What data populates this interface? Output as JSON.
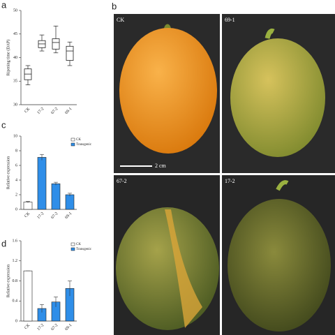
{
  "chart_data": [
    {
      "type": "box",
      "panel_label": "a",
      "y_label": "Ripening time (DAP)",
      "categories": [
        "CK",
        "17-2",
        "67-2",
        "69-1"
      ],
      "min": [
        34.2,
        41.4,
        41.0,
        38.3
      ],
      "q1": [
        35.3,
        42.1,
        41.8,
        39.4
      ],
      "median": [
        36.5,
        42.9,
        43.2,
        41.4
      ],
      "q3": [
        37.6,
        43.6,
        44.0,
        42.4
      ],
      "max": [
        38.3,
        44.8,
        46.7,
        43.3
      ],
      "color": "#ffffff",
      "ylim": [
        30,
        50
      ],
      "yticks": [
        30,
        35,
        40,
        45,
        50
      ]
    },
    {
      "type": "bar",
      "panel_label": "c",
      "y_label": "Relative expression",
      "categories": [
        "CK",
        "17-2",
        "67-2",
        "69-1"
      ],
      "series": [
        {
          "name": "CK",
          "color": "#ffffff",
          "values": [
            1.0,
            null,
            null,
            null
          ],
          "errors": [
            0.1,
            null,
            null,
            null
          ]
        },
        {
          "name": "Transgenic",
          "color": "#2f8ee8",
          "values": [
            null,
            7.1,
            3.5,
            2.0
          ],
          "errors": [
            null,
            0.4,
            0.2,
            0.2
          ]
        }
      ],
      "ylim": [
        0,
        10
      ],
      "yticks": [
        0,
        2,
        4,
        6,
        8,
        10
      ],
      "legend": "top-right"
    },
    {
      "type": "bar",
      "panel_label": "d",
      "y_label": "Relative expression",
      "categories": [
        "CK",
        "17-2",
        "67-2",
        "69-1"
      ],
      "series": [
        {
          "name": "CK",
          "color": "#ffffff",
          "values": [
            1.0,
            null,
            null,
            null
          ],
          "errors": [
            0.0,
            null,
            null,
            null
          ]
        },
        {
          "name": "Transgenic",
          "color": "#2f8ee8",
          "values": [
            null,
            0.25,
            0.38,
            0.65
          ],
          "errors": [
            null,
            0.08,
            0.1,
            0.15
          ]
        }
      ],
      "ylim": [
        0,
        1.6
      ],
      "yticks": [
        0,
        0.4,
        0.8,
        1.2,
        1.6
      ],
      "legend": "top-right"
    }
  ],
  "photos": {
    "panel_label": "b",
    "scale_bar": "2 cm",
    "panels": [
      {
        "label": "CK"
      },
      {
        "label": "69-1"
      },
      {
        "label": "67-2"
      },
      {
        "label": "17-2"
      }
    ]
  }
}
